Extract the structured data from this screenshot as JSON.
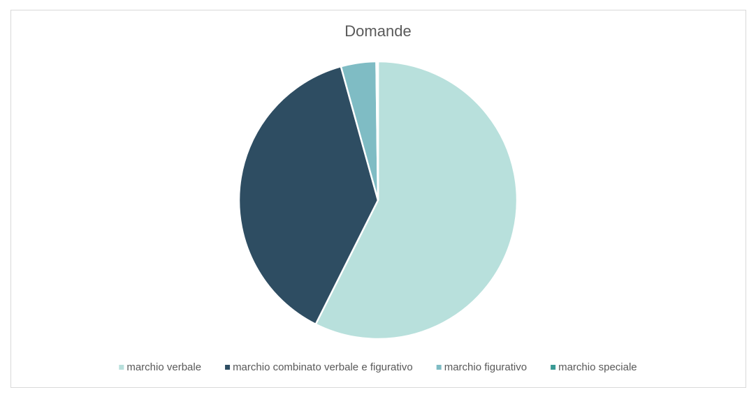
{
  "chart_data": {
    "type": "pie",
    "title": "Domande",
    "categories": [
      "marchio verbale",
      "marchio combinato verbale e figurativo",
      "marchio figurativo",
      "marchio speciale"
    ],
    "values": [
      57.4,
      38.3,
      4.1,
      0.2
    ],
    "colors": [
      "#b8e0dc",
      "#2e4d62",
      "#7fbcc4",
      "#3a9a95"
    ]
  }
}
